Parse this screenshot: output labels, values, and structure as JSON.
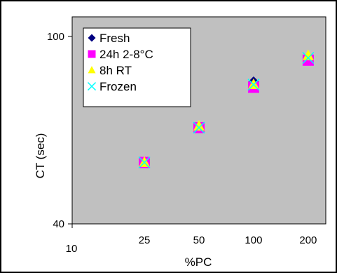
{
  "chart_data": {
    "type": "scatter",
    "title": "",
    "xlabel": "%PC",
    "ylabel": "CT (sec)",
    "x_scale": "log",
    "y_scale": "log",
    "xlim": [
      10,
      250
    ],
    "ylim": [
      40,
      110
    ],
    "x_ticks": [
      {
        "value": 10,
        "label": "10"
      },
      {
        "value": 25,
        "label": "25"
      },
      {
        "value": 50,
        "label": "50"
      },
      {
        "value": 100,
        "label": "100"
      },
      {
        "value": 200,
        "label": "200"
      }
    ],
    "y_ticks": [
      {
        "value": 40,
        "label": "40"
      },
      {
        "value": 100,
        "label": "100"
      }
    ],
    "grid": false,
    "plot_background": "#c0c0c0",
    "legend_position": "top-left",
    "x": [
      25,
      50,
      100,
      200
    ],
    "series": [
      {
        "name": "Fresh",
        "marker": "diamond",
        "color": "#000080",
        "values": [
          54,
          64,
          80,
          90
        ]
      },
      {
        "name": "24h 2-8°C",
        "marker": "square",
        "color": "#ff00ff",
        "values": [
          54,
          64,
          78,
          89
        ]
      },
      {
        "name": "8h RT",
        "marker": "triangle",
        "color": "#ffff00",
        "values": [
          54,
          64.5,
          79,
          91
        ]
      },
      {
        "name": "Frozen",
        "marker": "x",
        "color": "#00ffff",
        "values": [
          54,
          64,
          79,
          90
        ]
      }
    ]
  }
}
